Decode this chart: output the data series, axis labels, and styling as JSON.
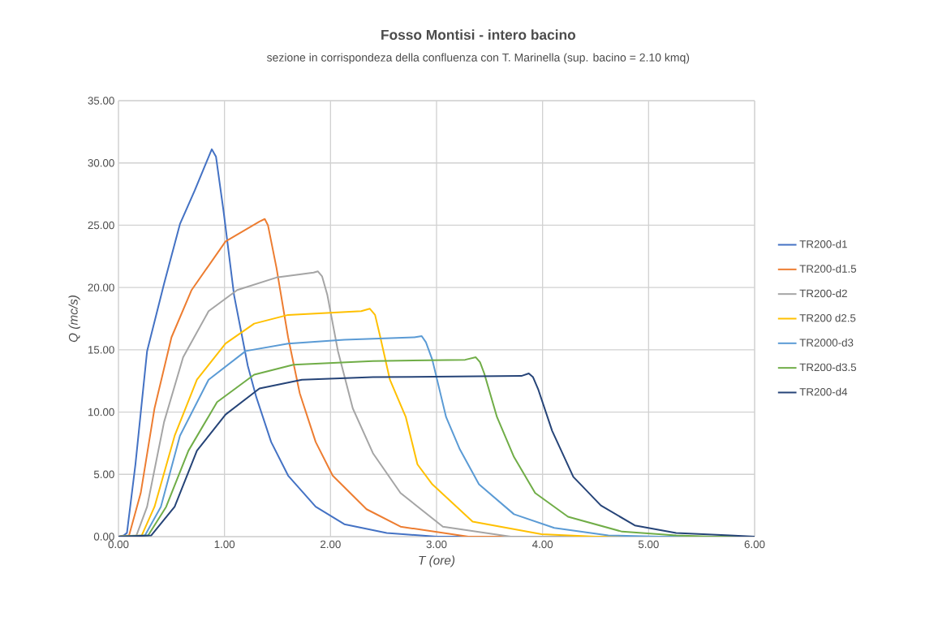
{
  "chart_data": {
    "type": "line",
    "title": "Fosso Montisi - intero bacino",
    "subtitle": "sezione in corrispondeza della confluenza con T. Marinella (sup. bacino = 2.10 kmq)",
    "xlabel": "T (ore)",
    "ylabel": "Q (mc/s)",
    "xlim": [
      0,
      6
    ],
    "ylim": [
      0,
      35
    ],
    "xticks": [
      {
        "value": 0,
        "label": "0.00"
      },
      {
        "value": 1,
        "label": "1.00"
      },
      {
        "value": 2,
        "label": "2.00"
      },
      {
        "value": 3,
        "label": "3.00"
      },
      {
        "value": 4,
        "label": "4.00"
      },
      {
        "value": 5,
        "label": "5.00"
      },
      {
        "value": 6,
        "label": "6.00"
      }
    ],
    "yticks": [
      {
        "value": 0,
        "label": "0.00"
      },
      {
        "value": 5,
        "label": "5.00"
      },
      {
        "value": 10,
        "label": "10.00"
      },
      {
        "value": 15,
        "label": "15.00"
      },
      {
        "value": 20,
        "label": "20.00"
      },
      {
        "value": 25,
        "label": "25.00"
      },
      {
        "value": 30,
        "label": "30.00"
      },
      {
        "value": 35,
        "label": "35.00"
      }
    ],
    "grid": true,
    "legend": "right",
    "marker": "none",
    "line_style": "solid",
    "series": [
      {
        "name": "TR200-d1",
        "color": "#4472c4",
        "x": [
          0,
          0.05,
          0.08,
          0.16,
          0.27,
          0.43,
          0.58,
          0.72,
          0.88,
          0.92,
          0.99,
          1.09,
          1.22,
          1.3,
          1.44,
          1.6,
          1.86,
          2.13,
          2.53,
          3.0,
          6.0
        ],
        "values": [
          0,
          0.1,
          0.3,
          5.8,
          14.9,
          20.3,
          25.1,
          27.8,
          31.1,
          30.5,
          26.2,
          19.4,
          13.7,
          11.2,
          7.6,
          4.9,
          2.4,
          1.0,
          0.3,
          0,
          0
        ]
      },
      {
        "name": "TR200-d1.5",
        "color": "#ed7d31",
        "x": [
          0,
          0.1,
          0.21,
          0.34,
          0.5,
          0.69,
          1.01,
          1.33,
          1.38,
          1.41,
          1.49,
          1.6,
          1.71,
          1.86,
          2.02,
          2.34,
          2.66,
          3.3,
          6.0
        ],
        "values": [
          0,
          0.1,
          3.5,
          10.3,
          16.0,
          19.8,
          23.7,
          25.3,
          25.5,
          25.0,
          21.6,
          16.0,
          11.5,
          7.6,
          4.9,
          2.2,
          0.8,
          0,
          0
        ]
      },
      {
        "name": "TR200-d2",
        "color": "#a5a5a5",
        "x": [
          0,
          0.17,
          0.27,
          0.43,
          0.61,
          0.85,
          1.12,
          1.49,
          1.84,
          1.88,
          1.92,
          1.97,
          2.07,
          2.21,
          2.4,
          2.66,
          3.06,
          3.7,
          6.0
        ],
        "values": [
          0,
          0.1,
          2.4,
          9.2,
          14.4,
          18.1,
          19.8,
          20.8,
          21.2,
          21.3,
          20.9,
          19.4,
          14.9,
          10.3,
          6.7,
          3.5,
          0.8,
          0,
          0
        ]
      },
      {
        "name": "TR200 d2.5",
        "color": "#ffc000",
        "x": [
          0,
          0.22,
          0.34,
          0.53,
          0.74,
          1.01,
          1.28,
          1.6,
          2.29,
          2.37,
          2.42,
          2.47,
          2.56,
          2.71,
          2.82,
          2.96,
          3.34,
          3.99,
          4.5,
          6.0
        ],
        "values": [
          0,
          0.1,
          2.4,
          8.1,
          12.6,
          15.5,
          17.1,
          17.8,
          18.1,
          18.3,
          17.8,
          16.0,
          12.6,
          9.6,
          5.8,
          4.2,
          1.2,
          0.2,
          0,
          0
        ]
      },
      {
        "name": "TR2000-d3",
        "color": "#5b9bd5",
        "x": [
          0,
          0.25,
          0.4,
          0.58,
          0.85,
          1.2,
          1.6,
          2.13,
          2.79,
          2.86,
          2.9,
          2.96,
          3.09,
          3.22,
          3.4,
          3.73,
          4.11,
          4.62,
          5.1,
          6.0
        ],
        "values": [
          0,
          0.1,
          2.4,
          8.1,
          12.6,
          14.9,
          15.5,
          15.8,
          16.0,
          16.1,
          15.6,
          14.2,
          9.6,
          7.0,
          4.2,
          1.8,
          0.7,
          0.1,
          0,
          0
        ]
      },
      {
        "name": "TR200-d3.5",
        "color": "#70ad47",
        "x": [
          0,
          0.28,
          0.45,
          0.66,
          0.93,
          1.28,
          1.65,
          2.4,
          3.27,
          3.37,
          3.41,
          3.45,
          3.57,
          3.73,
          3.93,
          4.24,
          4.75,
          5.26,
          5.6,
          6.0
        ],
        "values": [
          0,
          0.1,
          2.4,
          6.9,
          10.8,
          13.0,
          13.8,
          14.1,
          14.2,
          14.4,
          14.0,
          13.1,
          9.6,
          6.4,
          3.5,
          1.6,
          0.4,
          0.1,
          0,
          0
        ]
      },
      {
        "name": "TR200-d4",
        "color": "#264478",
        "x": [
          0,
          0.31,
          0.53,
          0.74,
          1.01,
          1.33,
          1.73,
          2.4,
          3.8,
          3.87,
          3.91,
          3.96,
          4.09,
          4.29,
          4.55,
          4.87,
          5.26,
          5.77,
          6.0
        ],
        "values": [
          0,
          0.1,
          2.4,
          6.9,
          9.8,
          11.9,
          12.6,
          12.8,
          12.9,
          13.1,
          12.8,
          11.8,
          8.5,
          4.8,
          2.5,
          0.9,
          0.3,
          0.1,
          0
        ]
      }
    ]
  }
}
